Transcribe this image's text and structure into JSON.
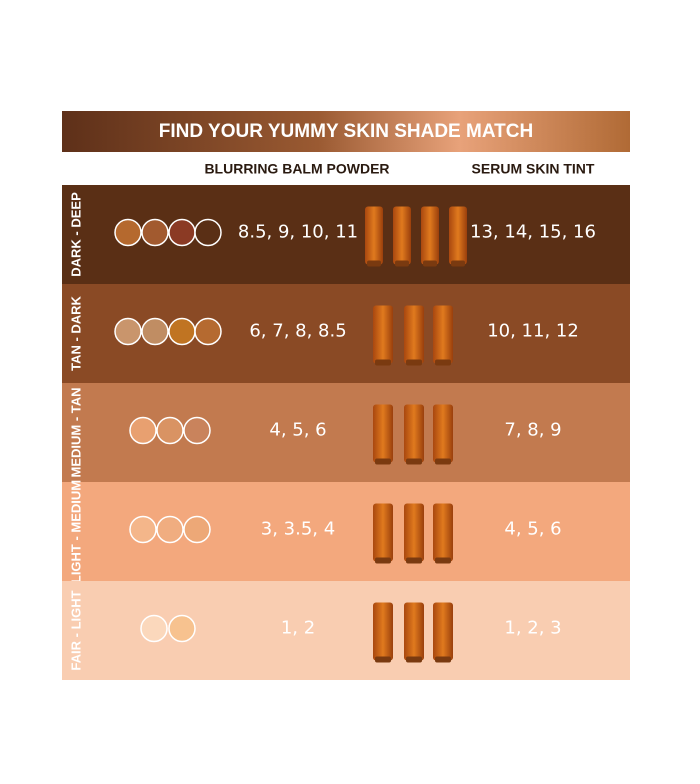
{
  "header": {
    "title": "FIND YOUR YUMMY SKIN SHADE MATCH"
  },
  "columns": [
    "BLURRING BALM POWDER",
    "SERUM SKIN TINT"
  ],
  "rows": [
    {
      "label": "DARK - DEEP",
      "powder": "8.5, 9, 10, 11",
      "tint": "13, 14, 15, 16"
    },
    {
      "label": "TAN - DARK",
      "powder": "6, 7, 8, 8.5",
      "tint": "10, 11, 12"
    },
    {
      "label": "MEDIUM - TAN",
      "powder": "4, 5, 6",
      "tint": "7, 8, 9"
    },
    {
      "label": "LIGHT - MEDIUM",
      "powder": "3, 3.5, 4",
      "tint": "4, 5, 6"
    },
    {
      "label": "FAIR - LIGHT",
      "powder": "1, 2",
      "tint": "1, 2, 3"
    }
  ]
}
